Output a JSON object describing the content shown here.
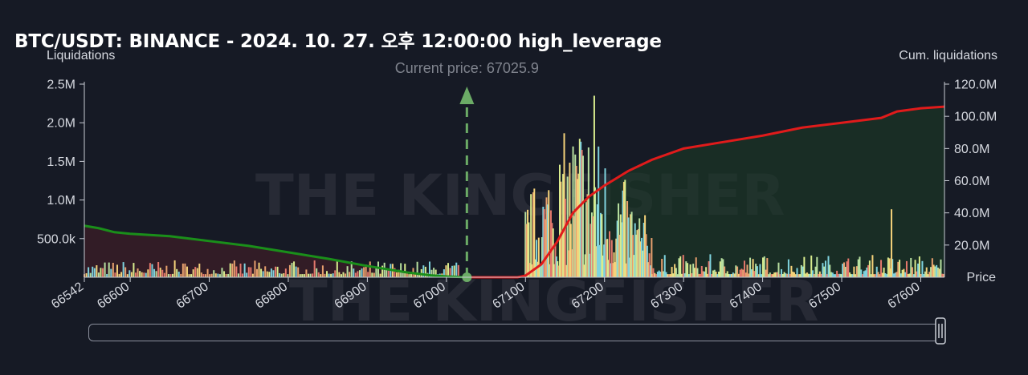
{
  "header": {
    "title": "BTC/USDT: BINANCE - 2024. 10. 27. 오후 12:00:00 high_leverage",
    "ylabel": "Liquidations",
    "y2label": "Cum. liquidations",
    "xlabel": "Price",
    "current_price_text": "Current price: 67025.9"
  },
  "colors": {
    "background": "#161a25",
    "short_cum_line": "#e01b1b",
    "long_cum_line": "#1a8f1a",
    "current_price_marker": "#6bab66",
    "bar_palette": [
      "#d8ec8e",
      "#f5d27a",
      "#e4786c",
      "#7fd3de",
      "#b8e0a0",
      "#e8a06e"
    ]
  },
  "chart_data": {
    "type": "bar",
    "title": "BTC/USDT: BINANCE - 2024. 10. 27. 오후 12:00:00 high_leverage",
    "xlabel": "Price",
    "ylabel": "Liquidations",
    "y2label": "Cum. liquidations",
    "xlim": [
      66542,
      67630
    ],
    "ylim": [
      0,
      2500000
    ],
    "y2lim": [
      0,
      120000000
    ],
    "x_ticks": [
      66542,
      66600,
      66700,
      66800,
      66900,
      67000,
      67100,
      67200,
      67300,
      67400,
      67500,
      67600
    ],
    "x_tick_labels": [
      "66542",
      "66600",
      "66700",
      "66800",
      "66900",
      "67000",
      "67100",
      "67200",
      "67300",
      "67400",
      "67500",
      "67600"
    ],
    "y_ticks": [
      500000,
      1000000,
      1500000,
      2000000,
      2500000
    ],
    "y_tick_labels": [
      "500.0k",
      "1.0M",
      "1.5M",
      "2.0M",
      "2.5M"
    ],
    "y2_ticks": [
      20000000,
      40000000,
      60000000,
      80000000,
      100000000,
      120000000
    ],
    "y2_tick_labels": [
      "20.0M",
      "40.0M",
      "60.0M",
      "80.0M",
      "100.0M",
      "120.0M"
    ],
    "current_price": 67025.9,
    "grid": false,
    "series": [
      {
        "type": "line",
        "axis": "y2",
        "x": [
          66542,
          66560,
          66580,
          66600,
          66650,
          66700,
          66750,
          66800,
          66850,
          66900,
          66950,
          66980,
          67000,
          67025.9
        ],
        "values": [
          32000000,
          30500000,
          28000000,
          27000000,
          25500000,
          22500000,
          19500000,
          15500000,
          11500000,
          7000000,
          3000000,
          1200000,
          500000,
          0
        ]
      },
      {
        "type": "line",
        "axis": "y2",
        "x": [
          67025.9,
          67090,
          67100,
          67120,
          67140,
          67160,
          67180,
          67200,
          67230,
          67260,
          67300,
          67350,
          67400,
          67450,
          67500,
          67550,
          67570,
          67600,
          67630
        ],
        "values": [
          0,
          0,
          1000000,
          8000000,
          22000000,
          40000000,
          50000000,
          57000000,
          66000000,
          73000000,
          80000000,
          84000000,
          88000000,
          93000000,
          96000000,
          99000000,
          103000000,
          105000000,
          106000000
        ]
      }
    ],
    "bar_clusters": [
      {
        "x": [
          66542,
          67025.9
        ],
        "typical_values": [
          40000,
          220000
        ]
      },
      {
        "x": [
          67100,
          67260
        ],
        "peak_value": 2350000,
        "typical_values": [
          300000,
          2100000
        ]
      },
      {
        "x": [
          67260,
          67630
        ],
        "typical_values": [
          40000,
          300000
        ]
      },
      {
        "x": [
          67563
        ],
        "values": [
          880000
        ]
      }
    ]
  }
}
